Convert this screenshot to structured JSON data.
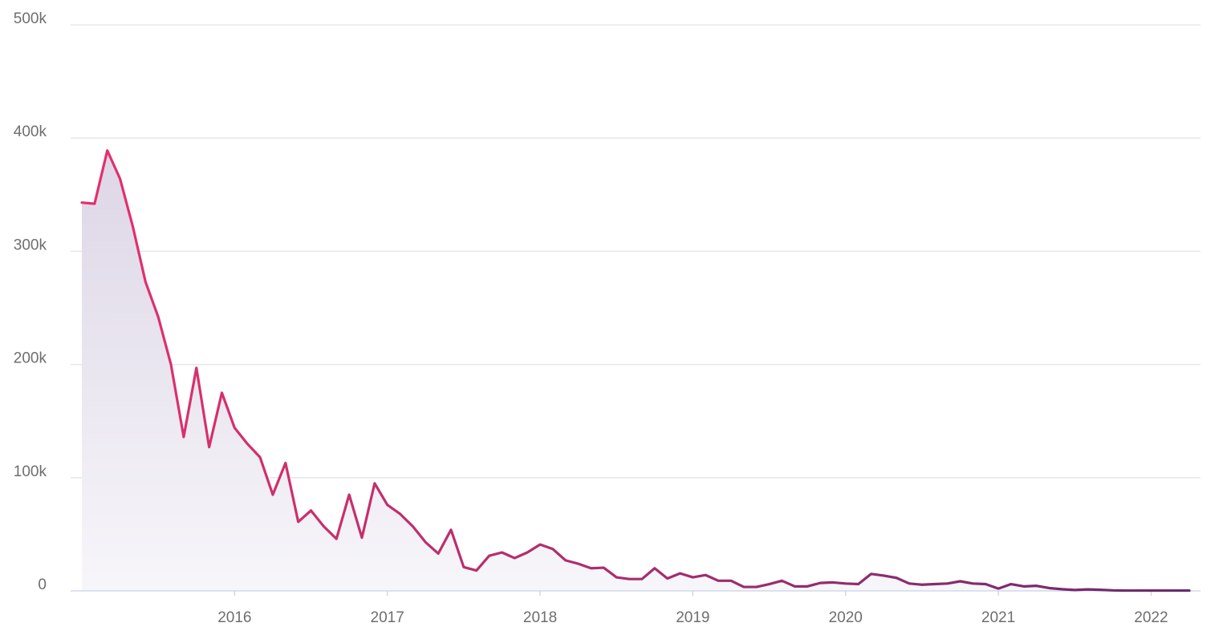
{
  "chart_data": {
    "type": "area",
    "x_unit": "month",
    "x": [
      "2015-01",
      "2015-02",
      "2015-03",
      "2015-04",
      "2015-05",
      "2015-06",
      "2015-07",
      "2015-08",
      "2015-09",
      "2015-10",
      "2015-11",
      "2015-12",
      "2016-01",
      "2016-02",
      "2016-03",
      "2016-04",
      "2016-05",
      "2016-06",
      "2016-07",
      "2016-08",
      "2016-09",
      "2016-10",
      "2016-11",
      "2016-12",
      "2017-01",
      "2017-02",
      "2017-03",
      "2017-04",
      "2017-05",
      "2017-06",
      "2017-07",
      "2017-08",
      "2017-09",
      "2017-10",
      "2017-11",
      "2017-12",
      "2018-01",
      "2018-02",
      "2018-03",
      "2018-04",
      "2018-05",
      "2018-06",
      "2018-07",
      "2018-08",
      "2018-09",
      "2018-10",
      "2018-11",
      "2018-12",
      "2019-01",
      "2019-02",
      "2019-03",
      "2019-04",
      "2019-05",
      "2019-06",
      "2019-07",
      "2019-08",
      "2019-09",
      "2019-10",
      "2019-11",
      "2019-12",
      "2020-01",
      "2020-02",
      "2020-03",
      "2020-04",
      "2020-05",
      "2020-06",
      "2020-07",
      "2020-08",
      "2020-09",
      "2020-10",
      "2020-11",
      "2020-12",
      "2021-01",
      "2021-02",
      "2021-03",
      "2021-04",
      "2021-05",
      "2021-06",
      "2021-07",
      "2021-08",
      "2021-09",
      "2021-10",
      "2021-11",
      "2021-12",
      "2022-01",
      "2022-02",
      "2022-03",
      "2022-04"
    ],
    "series": [
      {
        "values": [
          343000,
          342000,
          389000,
          364000,
          322000,
          273000,
          242000,
          200000,
          136000,
          197000,
          127000,
          175000,
          144000,
          130000,
          118000,
          85000,
          113000,
          61000,
          71000,
          57000,
          46000,
          85000,
          47000,
          95000,
          76000,
          68000,
          57000,
          43000,
          33000,
          54000,
          21000,
          18000,
          31000,
          34000,
          29000,
          34000,
          41000,
          37000,
          27000,
          24000,
          20000,
          20500,
          12000,
          10500,
          10500,
          20000,
          11000,
          15500,
          12000,
          14000,
          9000,
          9000,
          3500,
          3500,
          6000,
          9000,
          4000,
          4000,
          7000,
          7500,
          6500,
          6000,
          15000,
          13500,
          11500,
          6500,
          5500,
          6000,
          6500,
          8500,
          6500,
          6000,
          2000,
          6000,
          4000,
          4500,
          2500,
          1500,
          800,
          1300,
          1000,
          500,
          300,
          300,
          300,
          300,
          300,
          300
        ]
      }
    ],
    "xlim": [
      "2015-01",
      "2022-04"
    ],
    "ylim": [
      0,
      500000
    ],
    "yticks": [
      0,
      100000,
      200000,
      300000,
      400000,
      500000
    ],
    "ytick_labels": [
      "0",
      "100k",
      "200k",
      "300k",
      "400k",
      "500k"
    ],
    "xticks": [
      "2016-01",
      "2017-01",
      "2018-01",
      "2019-01",
      "2020-01",
      "2021-01",
      "2022-01"
    ],
    "xtick_labels": [
      "2016",
      "2017",
      "2018",
      "2019",
      "2020",
      "2021",
      "2022"
    ],
    "grid": "horizontal",
    "legend": "none",
    "title": "",
    "xlabel": "",
    "ylabel": "",
    "colors": {
      "line_start": "#e5306c",
      "line_end": "#6a2a6e",
      "fill_top": "#ddd6e6",
      "fill_bottom": "#f7f6fa",
      "grid": "#e2e4ea",
      "axis": "#c9d2e6",
      "tick_text": "#6e6e6e"
    }
  }
}
